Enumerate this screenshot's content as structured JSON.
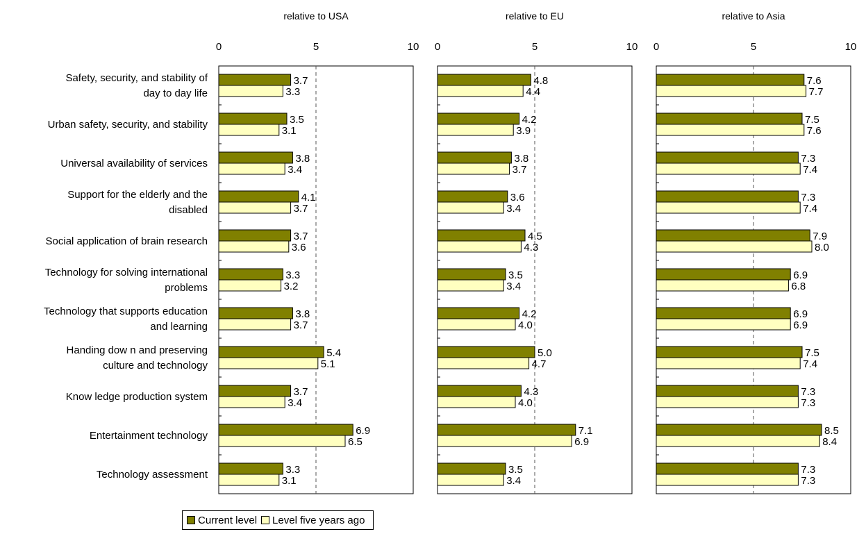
{
  "chart_data": {
    "type": "bar",
    "orientation": "horizontal",
    "categories": [
      "Safety, security, and stability of day to day life",
      "Urban safety, security, and stability",
      "Universal availability of services",
      "Support for the elderly and the disabled",
      "Social application of brain research",
      "Technology for solving international problems",
      "Technology that supports education and learning",
      "Handing dow n and preserving culture and technology",
      "Know ledge production system",
      "Entertainment technology",
      "Technology assessment"
    ],
    "category_lines": [
      [
        "Safety, security, and stability of",
        "day to day life"
      ],
      [
        "Urban safety, security, and stability"
      ],
      [
        "Universal availability of services"
      ],
      [
        "Support for the elderly and the",
        "disabled"
      ],
      [
        "Social application of brain research"
      ],
      [
        "Technology for solving international",
        "problems"
      ],
      [
        "Technology that supports education",
        "and learning"
      ],
      [
        "Handing dow n and preserving",
        "culture and technology"
      ],
      [
        "Know ledge production system"
      ],
      [
        "Entertainment technology"
      ],
      [
        "Technology assessment"
      ]
    ],
    "xlim": [
      0,
      10
    ],
    "xticks": [
      "0",
      "5",
      "10"
    ],
    "reference_line": 5,
    "colors": {
      "current": "#808000",
      "past": "#ffffc0"
    },
    "panels": [
      {
        "title": "relative to USA",
        "series": [
          {
            "name": "Current level",
            "values": [
              3.7,
              3.5,
              3.8,
              4.1,
              3.7,
              3.3,
              3.8,
              5.4,
              3.7,
              6.9,
              3.3
            ],
            "labels": [
              "3.7",
              "3.5",
              "3.8",
              "4.1",
              "3.7",
              "3.3",
              "3.8",
              "5.4",
              "3.7",
              "6.9",
              "3.3"
            ]
          },
          {
            "name": "Level five years ago",
            "values": [
              3.3,
              3.1,
              3.4,
              3.7,
              3.6,
              3.2,
              3.7,
              5.1,
              3.4,
              6.5,
              3.1
            ],
            "labels": [
              "3.3",
              "3.1",
              "3.4",
              "3.7",
              "3.6",
              "3.2",
              "3.7",
              "5.1",
              "3.4",
              "6.5",
              "3.1"
            ]
          }
        ]
      },
      {
        "title": "relative to EU",
        "series": [
          {
            "name": "Current level",
            "values": [
              4.8,
              4.2,
              3.8,
              3.6,
              4.5,
              3.5,
              4.2,
              5.0,
              4.3,
              7.1,
              3.5
            ],
            "labels": [
              "4.8",
              "4.2",
              "3.8",
              "3.6",
              "4.5",
              "3.5",
              "4.2",
              "5.0",
              "4.3",
              "7.1",
              "3.5"
            ]
          },
          {
            "name": "Level five years ago",
            "values": [
              4.4,
              3.9,
              3.7,
              3.4,
              4.3,
              3.4,
              4.0,
              4.7,
              4.0,
              6.9,
              3.4
            ],
            "labels": [
              "4.4",
              "3.9",
              "3.7",
              "3.4",
              "4.3",
              "3.4",
              "4.0",
              "4.7",
              "4.0",
              "6.9",
              "3.4"
            ]
          }
        ]
      },
      {
        "title": "relative to Asia",
        "series": [
          {
            "name": "Current level",
            "values": [
              7.6,
              7.5,
              7.3,
              7.3,
              7.9,
              6.9,
              6.9,
              7.5,
              7.3,
              8.5,
              7.3
            ],
            "labels": [
              "7.6",
              "7.5",
              "7.3",
              "7.3",
              "7.9",
              "6.9",
              "6.9",
              "7.5",
              "7.3",
              "8.5",
              "7.3"
            ]
          },
          {
            "name": "Level five years ago",
            "values": [
              7.7,
              7.6,
              7.4,
              7.4,
              8.0,
              6.8,
              6.9,
              7.4,
              7.3,
              8.4,
              7.3
            ],
            "labels": [
              "7.7",
              "7.6",
              "7.4",
              "7.4",
              "8.0",
              "6.8",
              "6.9",
              "7.4",
              "7.3",
              "8.4",
              "7.3"
            ]
          }
        ]
      }
    ],
    "legend": {
      "position": "bottom",
      "entries": [
        "Current level",
        "Level five years ago"
      ]
    }
  }
}
